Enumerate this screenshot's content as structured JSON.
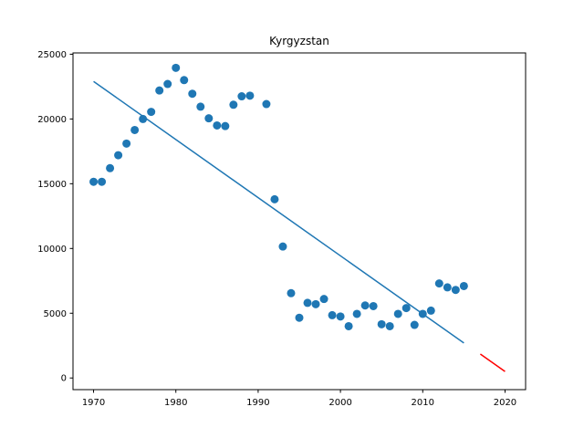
{
  "chart_data": {
    "type": "scatter",
    "title": "Kyrgyzstan",
    "xlabel": "",
    "ylabel": "",
    "xlim": [
      1967.5,
      2022.5
    ],
    "ylim": [
      -900,
      25100
    ],
    "x_ticks": [
      1970,
      1980,
      1990,
      2000,
      2010,
      2020
    ],
    "y_ticks": [
      0,
      5000,
      10000,
      15000,
      20000,
      25000
    ],
    "grid": false,
    "series": [
      {
        "type": "scatter",
        "color": "#1f77b4",
        "points": [
          [
            1970,
            15150
          ],
          [
            1971,
            15150
          ],
          [
            1972,
            16200
          ],
          [
            1973,
            17200
          ],
          [
            1974,
            18100
          ],
          [
            1975,
            19150
          ],
          [
            1976,
            20000
          ],
          [
            1977,
            20550
          ],
          [
            1978,
            22200
          ],
          [
            1979,
            22700
          ],
          [
            1980,
            23950
          ],
          [
            1981,
            23000
          ],
          [
            1982,
            21950
          ],
          [
            1983,
            20950
          ],
          [
            1984,
            20050
          ],
          [
            1985,
            19500
          ],
          [
            1986,
            19450
          ],
          [
            1987,
            21100
          ],
          [
            1988,
            21750
          ],
          [
            1989,
            21800
          ],
          [
            1991,
            21150
          ],
          [
            1992,
            13800
          ],
          [
            1993,
            10150
          ],
          [
            1994,
            6550
          ],
          [
            1995,
            4650
          ],
          [
            1996,
            5800
          ],
          [
            1997,
            5700
          ],
          [
            1998,
            6100
          ],
          [
            1999,
            4850
          ],
          [
            2000,
            4750
          ],
          [
            2001,
            4000
          ],
          [
            2002,
            4950
          ],
          [
            2003,
            5600
          ],
          [
            2004,
            5550
          ],
          [
            2005,
            4150
          ],
          [
            2006,
            4000
          ],
          [
            2007,
            4950
          ],
          [
            2008,
            5400
          ],
          [
            2009,
            4100
          ],
          [
            2010,
            4950
          ],
          [
            2011,
            5200
          ],
          [
            2012,
            7300
          ],
          [
            2013,
            7000
          ],
          [
            2014,
            6800
          ],
          [
            2015,
            7100
          ]
        ]
      },
      {
        "type": "line",
        "color": "#1f77b4",
        "points": [
          [
            1970,
            22900
          ],
          [
            2015,
            2700
          ]
        ]
      },
      {
        "type": "line",
        "color": "#ff0000",
        "points": [
          [
            2017,
            1850
          ],
          [
            2020,
            500
          ]
        ]
      }
    ]
  }
}
